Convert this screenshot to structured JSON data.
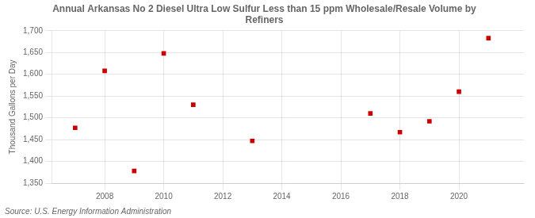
{
  "chart_data": {
    "type": "scatter",
    "title": "Annual Arkansas No 2 Diesel Ultra Low Sulfur Less than 15 ppm Wholesale/Resale Volume by\nRefiners",
    "ylabel": "Thousand Gallons per Day",
    "source": "Source: U.S. Energy Information Administration",
    "x": [
      2007,
      2008,
      2009,
      2010,
      2011,
      2013,
      2017,
      2018,
      2019,
      2020,
      2021
    ],
    "values": [
      1477,
      1608,
      1378,
      1648,
      1530,
      1447,
      1510,
      1467,
      1492,
      1560,
      1683
    ],
    "color": "#cc0000",
    "marker": "square",
    "xlim": [
      2006.2,
      2022.2
    ],
    "xticks": [
      2008,
      2010,
      2012,
      2014,
      2016,
      2018,
      2020
    ],
    "ylim": [
      1350,
      1700
    ],
    "yticks": [
      {
        "value": 1350,
        "label": "1,350"
      },
      {
        "value": 1400,
        "label": "1,400"
      },
      {
        "value": 1450,
        "label": "1,450"
      },
      {
        "value": 1500,
        "label": "1,500"
      },
      {
        "value": 1550,
        "label": "1,550"
      },
      {
        "value": 1600,
        "label": "1,600"
      },
      {
        "value": 1650,
        "label": "1,650"
      },
      {
        "value": 1700,
        "label": "1,700"
      }
    ],
    "grid": true
  }
}
